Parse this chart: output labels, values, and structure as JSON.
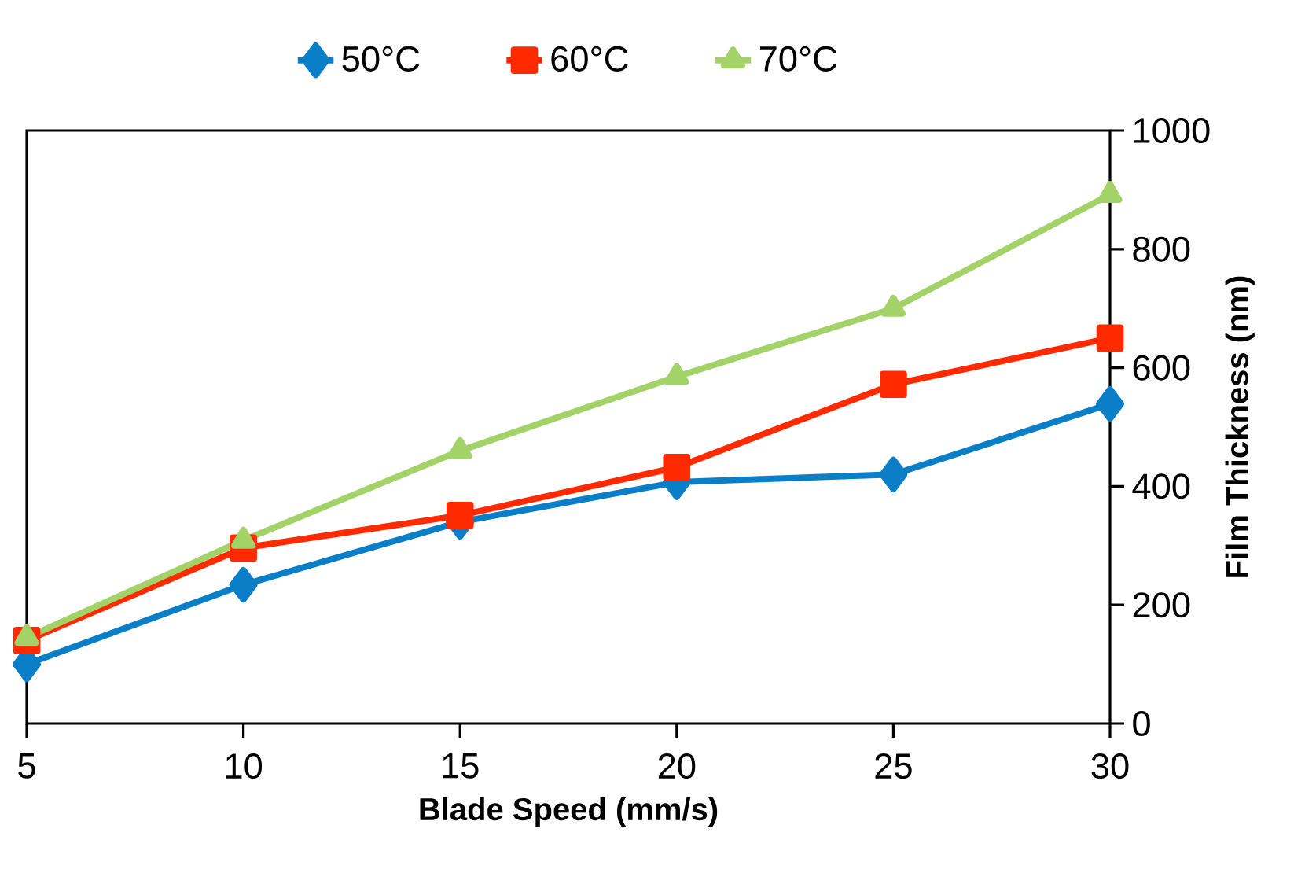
{
  "chart_data": {
    "type": "line",
    "xlabel": "Blade Speed (mm/s)",
    "ylabel": "Film Thickness (nm)",
    "x": [
      5,
      10,
      15,
      20,
      25,
      30
    ],
    "xlim": [
      5,
      30
    ],
    "xticks": [
      5,
      10,
      15,
      20,
      25,
      30
    ],
    "ylim": [
      0,
      1000
    ],
    "yticks": [
      0,
      200,
      400,
      600,
      800,
      1000
    ],
    "grid": false,
    "legend": "top",
    "line_style": "solid",
    "series": [
      {
        "name": "50°C",
        "color": "#0a7fc8",
        "marker": "diamond",
        "values": [
          100,
          234,
          340,
          407,
          420,
          539
        ]
      },
      {
        "name": "60°C",
        "color": "#ff2a00",
        "marker": "square",
        "values": [
          140,
          296,
          351,
          432,
          572,
          650
        ]
      },
      {
        "name": "70°C",
        "color": "#a3d368",
        "marker": "triangle",
        "values": [
          145,
          309,
          460,
          585,
          700,
          892
        ]
      }
    ]
  }
}
